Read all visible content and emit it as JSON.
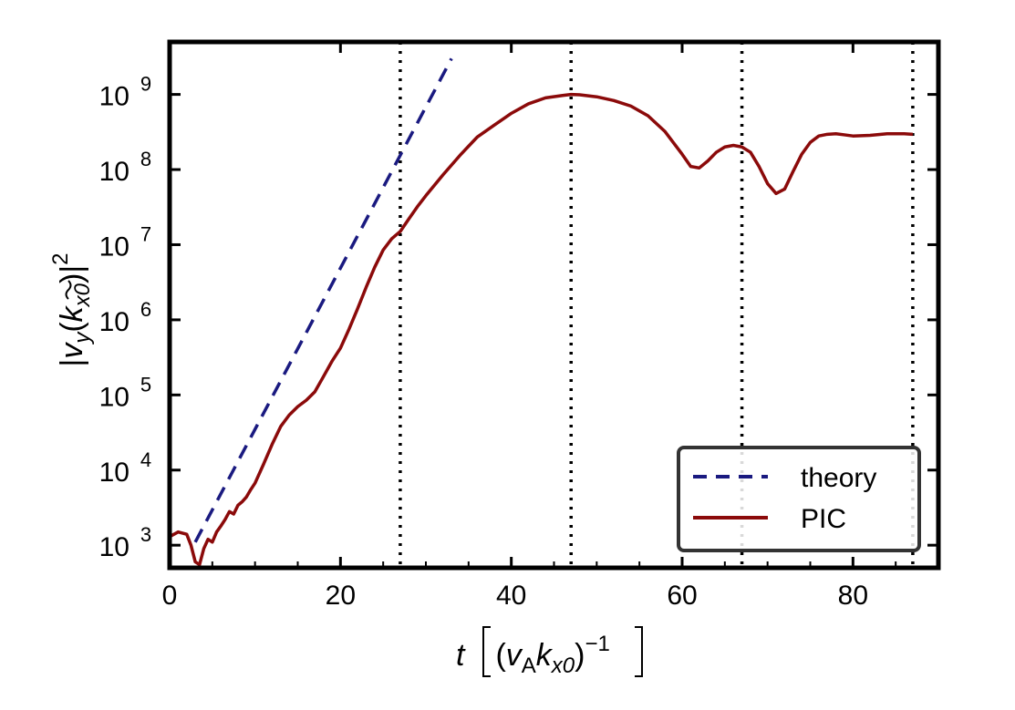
{
  "chart_data": {
    "type": "line",
    "title": "",
    "xlabel": {
      "var": "t",
      "unit": "(vAkx0)^-1",
      "v": "v",
      "v_sub": "A",
      "k": "k",
      "k_sub": "x0",
      "exp": "−1"
    },
    "ylabel": {
      "prefix": "|",
      "var": "v",
      "var_sub": "y",
      "arg_open": "(",
      "k": "k",
      "k_sub": "x0",
      "arg_close": ")|",
      "exp": "2"
    },
    "xlim": [
      0,
      90
    ],
    "ylim": [
      500,
      5000000000
    ],
    "yscale": "log",
    "xticks": [
      0,
      20,
      40,
      60,
      80
    ],
    "xtick_labels": [
      "0",
      "20",
      "40",
      "60",
      "80"
    ],
    "yticks": [
      1000,
      10000,
      100000,
      1000000,
      10000000,
      100000000,
      1000000000
    ],
    "ytick_labels": [
      {
        "base": "10",
        "exp": "3"
      },
      {
        "base": "10",
        "exp": "4"
      },
      {
        "base": "10",
        "exp": "5"
      },
      {
        "base": "10",
        "exp": "6"
      },
      {
        "base": "10",
        "exp": "7"
      },
      {
        "base": "10",
        "exp": "8"
      },
      {
        "base": "10",
        "exp": "9"
      }
    ],
    "vlines": [
      27,
      47,
      67,
      87
    ],
    "legend_position": "lower-right",
    "series": [
      {
        "name": "theory",
        "style": "dashed",
        "color": "#1a1a80",
        "x": [
          3,
          33
        ],
        "y": [
          1100,
          3000000000
        ]
      },
      {
        "name": "PIC",
        "style": "solid",
        "color": "#8b0a0a",
        "x": [
          0,
          1,
          2,
          2.5,
          3,
          3.5,
          4,
          4.5,
          5,
          5.5,
          6,
          6.5,
          7,
          7.5,
          8,
          8.5,
          9,
          9.5,
          10,
          11,
          12,
          13,
          14,
          15,
          16,
          17,
          18,
          19,
          20,
          21,
          22,
          23,
          24,
          25,
          26,
          27,
          28,
          29,
          30,
          32,
          34,
          36,
          38,
          40,
          42,
          44,
          46,
          47,
          48,
          50,
          52,
          54,
          56,
          58,
          60,
          61,
          62,
          63,
          64,
          65,
          66,
          67,
          68,
          69,
          70,
          71,
          72,
          73,
          74,
          75,
          76,
          77,
          78,
          79,
          80,
          82,
          84,
          86,
          87
        ],
        "y": [
          1300,
          1500,
          1400,
          1000,
          600,
          550,
          900,
          1200,
          1100,
          1500,
          1800,
          2200,
          2800,
          2600,
          3400,
          3800,
          4400,
          5500,
          6700,
          12000,
          22000,
          38000,
          54000,
          70000,
          85000,
          110000,
          175000,
          280000,
          420000,
          750000,
          1400000,
          2700000,
          5000000,
          8500000,
          12000000,
          15000000,
          22000000,
          32000000,
          45000000,
          85000000,
          155000000,
          270000000,
          390000000,
          560000000,
          750000000,
          900000000,
          970000000,
          1000000000,
          990000000,
          930000000,
          830000000,
          700000000,
          520000000,
          320000000,
          160000000,
          110000000,
          105000000,
          130000000,
          170000000,
          200000000,
          210000000,
          200000000,
          170000000,
          110000000,
          65000000,
          48000000,
          55000000,
          95000000,
          160000000,
          230000000,
          280000000,
          295000000,
          300000000,
          290000000,
          280000000,
          285000000,
          300000000,
          300000000,
          295000000
        ]
      }
    ]
  }
}
